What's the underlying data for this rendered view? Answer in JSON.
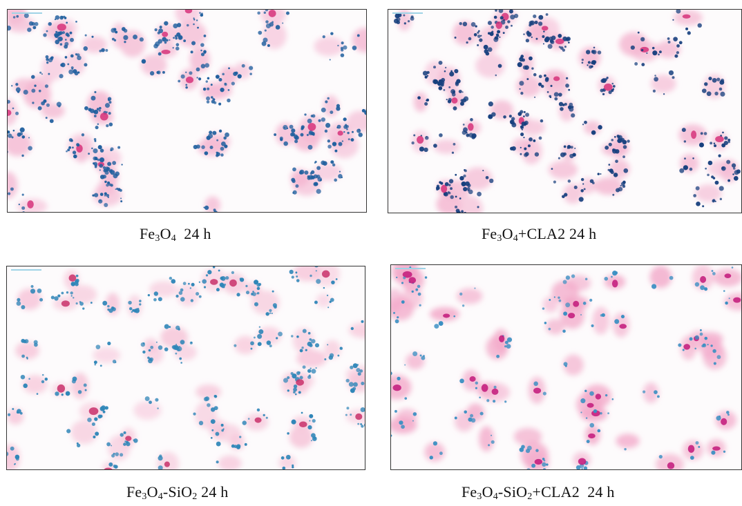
{
  "panels": [
    {
      "id": "fe3o4",
      "caption_parts": [
        {
          "t": "Fe"
        },
        {
          "t": "3",
          "sub": true
        },
        {
          "t": "O"
        },
        {
          "t": "4",
          "sub": true
        },
        {
          "t": "  24 h"
        }
      ],
      "stain": {
        "cell_color": "#f4b8d2",
        "iron_color": "#1f5f9e",
        "nucleus_color": "#d6337a",
        "iron_density": "high",
        "nuclei_density": "low"
      }
    },
    {
      "id": "fe3o4-cla2",
      "caption_parts": [
        {
          "t": "Fe"
        },
        {
          "t": "3",
          "sub": true
        },
        {
          "t": "O"
        },
        {
          "t": "4",
          "sub": true
        },
        {
          "t": "+CLA2 24 h"
        }
      ],
      "stain": {
        "cell_color": "#f4b8d2",
        "iron_color": "#17407e",
        "nucleus_color": "#d6337a",
        "iron_density": "high",
        "nuclei_density": "low"
      }
    },
    {
      "id": "fe3o4-sio2",
      "caption_parts": [
        {
          "t": "Fe"
        },
        {
          "t": "3",
          "sub": true
        },
        {
          "t": "O"
        },
        {
          "t": "4",
          "sub": true
        },
        {
          "t": "-SiO"
        },
        {
          "t": "2",
          "sub": true
        },
        {
          "t": " 24 h"
        }
      ],
      "stain": {
        "cell_color": "#f6c4d8",
        "iron_color": "#2f86b8",
        "nucleus_color": "#c9306a",
        "iron_density": "medium",
        "nuclei_density": "low"
      }
    },
    {
      "id": "fe3o4-sio2-cla2",
      "caption_parts": [
        {
          "t": "Fe"
        },
        {
          "t": "3",
          "sub": true
        },
        {
          "t": "O"
        },
        {
          "t": "4",
          "sub": true
        },
        {
          "t": "-SiO"
        },
        {
          "t": "2",
          "sub": true
        },
        {
          "t": "+CLA2  24 h"
        }
      ],
      "stain": {
        "cell_color": "#f2a9c9",
        "iron_color": "#3a8fc2",
        "nucleus_color": "#c2187a",
        "iron_density": "low",
        "nuclei_density": "high"
      }
    }
  ]
}
